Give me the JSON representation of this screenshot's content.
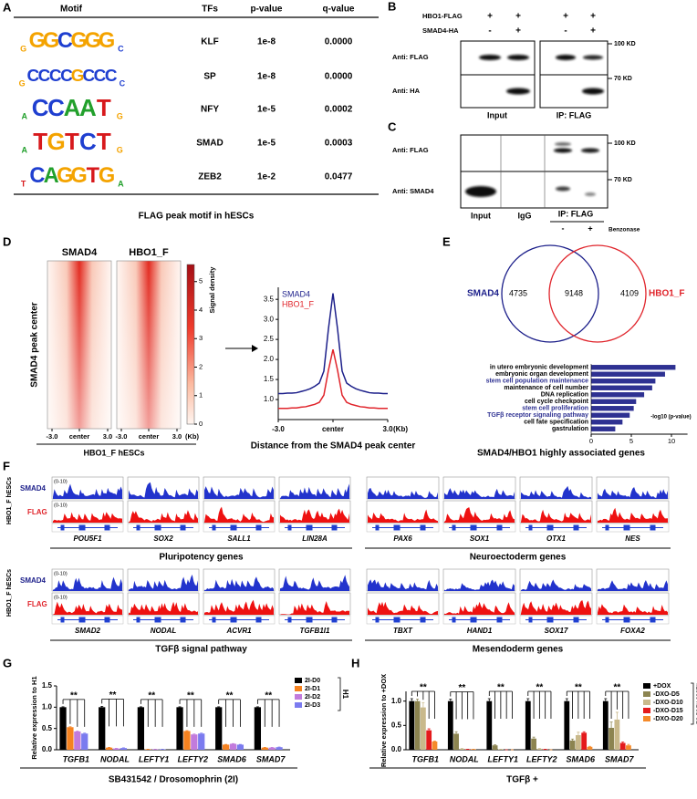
{
  "panel_a": {
    "letter": "A",
    "header": [
      "Motif",
      "TFs",
      "p-value",
      "q-value"
    ],
    "rows": [
      {
        "motif": [
          "G",
          "G",
          "G",
          "C",
          "G",
          "G",
          "G",
          "C"
        ],
        "tf": "KLF",
        "p": "1e-8",
        "q": "0.0000"
      },
      {
        "motif": [
          "G",
          "C",
          "C",
          "C",
          "C",
          "G",
          "C",
          "C",
          "C",
          "C"
        ],
        "tf": "SP",
        "p": "1e-8",
        "q": "0.0000"
      },
      {
        "motif": [
          "A",
          "C",
          "C",
          "A",
          "A",
          "T",
          "G"
        ],
        "tf": "NFY",
        "p": "1e-5",
        "q": "0.0002"
      },
      {
        "motif": [
          "A",
          "T",
          "G",
          "T",
          "C",
          "T",
          "G"
        ],
        "tf": "SMAD",
        "p": "1e-5",
        "q": "0.0003"
      },
      {
        "motif": [
          "T",
          "C",
          "A",
          "G",
          "G",
          "T",
          "G",
          "A"
        ],
        "tf": "ZEB2",
        "p": "1e-2",
        "q": "0.0477"
      }
    ],
    "caption": "FLAG peak motif in hESCs"
  },
  "panel_b": {
    "letter": "B",
    "rows": [
      {
        "label": "HBO1-FLAG",
        "signs": [
          "+",
          "+",
          "+",
          "+"
        ]
      },
      {
        "label": "SMAD4-HA",
        "signs": [
          "-",
          "+",
          "-",
          "+"
        ]
      }
    ],
    "blots": [
      {
        "label": "Anti: FLAG",
        "marker": "100 KD"
      },
      {
        "label": "Anti: HA",
        "marker": "70 KD"
      }
    ],
    "lanes": [
      "Input",
      "IP: FLAG"
    ]
  },
  "panel_c": {
    "letter": "C",
    "blots": [
      {
        "label": "Anti: FLAG",
        "marker": "100 KD"
      },
      {
        "label": "Anti: SMAD4",
        "marker": "70 KD"
      }
    ],
    "lanes": [
      "Input",
      "IgG",
      "IP: FLAG"
    ],
    "signs": [
      "-",
      "+"
    ],
    "treatment": "Benzonase"
  },
  "panel_d": {
    "letter": "D",
    "heatmap_titles": [
      "SMAD4",
      "HBO1_F"
    ],
    "y_label": "SMAD4 peak center",
    "x_ticks": [
      "-3.0",
      "center",
      "3.0"
    ],
    "x_unit": "(Kb)",
    "caption": "HBO1_F hESCs",
    "colorbar": {
      "label": "Signal density",
      "lim": [
        0,
        5.6
      ],
      "ticks": [
        0,
        1,
        2,
        3,
        4,
        5
      ]
    }
  },
  "panel_e": {
    "letter": "E",
    "venn": {
      "left_label": "SMAD4",
      "right_label": "HBO1_F",
      "left_only": 4735,
      "both": 9148,
      "right_only": 4109
    }
  },
  "panel_f": {
    "letter": "F",
    "rows": [
      {
        "side_label": "HBO1_F hESCs",
        "track_labels": [
          "SMAD4",
          "FLAG"
        ],
        "ranges": [
          "(0-10)",
          "(0-10)"
        ],
        "groups": [
          {
            "title": "Pluripotency genes",
            "genes": [
              "POU5F1",
              "SOX2",
              "SALL1",
              "LIN28A"
            ]
          },
          {
            "title": "Neuroectoderm genes",
            "genes": [
              "PAX6",
              "SOX1",
              "OTX1",
              "NES"
            ]
          }
        ]
      },
      {
        "side_label": "HBO1_F hESCs",
        "track_labels": [
          "SMAD4",
          "FLAG"
        ],
        "ranges": [
          "(0-10)",
          "(0-10)"
        ],
        "groups": [
          {
            "title": "TGFβ signal pathway",
            "genes": [
              "SMAD2",
              "NODAL",
              "ACVR1",
              "TGFB1I1"
            ]
          },
          {
            "title": "Mesendoderm genes",
            "genes": [
              "TBXT",
              "HAND1",
              "SOX17",
              "FOXA2"
            ]
          }
        ]
      }
    ]
  },
  "panel_g": {
    "letter": "G"
  },
  "panel_h": {
    "letter": "H"
  },
  "chart_data": [
    {
      "type": "line",
      "x": [
        -3,
        -2.75,
        -2.5,
        -2.25,
        -2,
        -1.75,
        -1.5,
        -1.25,
        -1,
        -0.75,
        -0.5,
        -0.25,
        0,
        0.25,
        0.5,
        0.75,
        1,
        1.25,
        1.5,
        1.75,
        2,
        2.25,
        2.5,
        2.75,
        3
      ],
      "series": [
        {
          "name": "SMAD4",
          "color": "#1c1f8a",
          "values": [
            1.15,
            1.15,
            1.16,
            1.16,
            1.17,
            1.2,
            1.23,
            1.27,
            1.33,
            1.41,
            1.71,
            2.76,
            3.65,
            2.76,
            1.71,
            1.41,
            1.33,
            1.27,
            1.23,
            1.2,
            1.17,
            1.16,
            1.16,
            1.15,
            1.15
          ]
        },
        {
          "name": "HBO1_F",
          "color": "#e0242b",
          "values": [
            0.78,
            0.78,
            0.78,
            0.79,
            0.79,
            0.81,
            0.82,
            0.85,
            0.88,
            0.93,
            1.11,
            1.73,
            2.25,
            1.73,
            1.11,
            0.93,
            0.88,
            0.85,
            0.82,
            0.81,
            0.79,
            0.79,
            0.78,
            0.78,
            0.78
          ]
        }
      ],
      "xlim": [
        -3,
        3
      ],
      "ylim": [
        0.5,
        3.8
      ],
      "xticks": [
        {
          "value": -3,
          "label": "-3.0"
        },
        {
          "value": 0,
          "label": "center"
        },
        {
          "value": 3,
          "label": "3.0"
        }
      ],
      "yticks": [
        {
          "value": 1,
          "label": "1.0"
        },
        1.5,
        {
          "value": 2,
          "label": "2.0"
        },
        2.5,
        {
          "value": 3,
          "label": "3.0"
        },
        3.5
      ],
      "x_unit": "(Kb)",
      "xlabel": "Distance from the SMAD4 peak center"
    },
    {
      "type": "hbar",
      "categories": [
        "in utero embryonic development",
        "embryonic organ development",
        "stem cell population maintenance",
        "maintenance of cell number",
        "DNA replication",
        "cell cycle checkpoint",
        "stem cell proliferation",
        "TGFβ receptor signaling pathway",
        "cell fate specification",
        "gastrulation"
      ],
      "values": [
        10.5,
        9.2,
        8.0,
        7.6,
        6.6,
        5.6,
        5.3,
        4.8,
        3.9,
        3.0
      ],
      "color": "#2e3192",
      "label_colors": [
        "#000000",
        "#000000",
        "#2e3192",
        "#000000",
        "#000000",
        "#000000",
        "#2e3192",
        "#2e3192",
        "#000000",
        "#000000"
      ],
      "xlim": [
        0,
        12
      ],
      "xticks": [
        0,
        5,
        10
      ],
      "xlabel": "-log10 (p-value)",
      "title": "SMAD4/HBO1 highly associated genes"
    },
    {
      "type": "bar",
      "categories": [
        "TGFB1",
        "NODAL",
        "LEFTY1",
        "LEFTY2",
        "SMAD6",
        "SMAD7"
      ],
      "series": [
        {
          "name": "2I-D0",
          "color": "#000000",
          "values": [
            1.0,
            1.0,
            1.0,
            1.0,
            1.0,
            1.0
          ],
          "errors": [
            0.01,
            0.02,
            0.01,
            0.01,
            0.01,
            0.01
          ]
        },
        {
          "name": "2I-D1",
          "color": "#f58220",
          "values": [
            0.53,
            0.05,
            0.01,
            0.44,
            0.12,
            0.05
          ],
          "errors": [
            0.01,
            0.005,
            0.002,
            0.01,
            0.005,
            0.005
          ]
        },
        {
          "name": "2I-D2",
          "color": "#c27bdc",
          "values": [
            0.43,
            0.03,
            0.01,
            0.36,
            0.14,
            0.05
          ],
          "errors": [
            0.01,
            0.005,
            0.002,
            0.01,
            0.005,
            0.005
          ]
        },
        {
          "name": "2I-D3",
          "color": "#7b7bef",
          "values": [
            0.38,
            0.04,
            0.01,
            0.38,
            0.12,
            0.06
          ],
          "errors": [
            0.01,
            0.005,
            0.002,
            0.01,
            0.005,
            0.005
          ]
        }
      ],
      "ylim": [
        0,
        1.5
      ],
      "yticks": [
        {
          "value": 0,
          "label": "0.0"
        },
        0.5,
        {
          "value": 1,
          "label": "1.0"
        },
        1.5
      ],
      "significance": [
        "**",
        "**",
        "**",
        "**",
        "**",
        "**"
      ],
      "ylabel": "Relative expression to H1",
      "xlabel": "SB431542 / Drosomophrin (2I)",
      "legend_title": "H1"
    },
    {
      "type": "bar",
      "categories": [
        "TGFB1",
        "NODAL",
        "LEFTY1",
        "LEFTY2",
        "SMAD6",
        "SMAD7"
      ],
      "series": [
        {
          "name": "+DOX",
          "color": "#000000",
          "values": [
            1.0,
            1.0,
            1.0,
            1.0,
            1.0,
            1.0
          ],
          "errors": [
            0.05,
            0.04,
            0.05,
            0.05,
            0.05,
            0.05
          ]
        },
        {
          "name": "-DXO-D5",
          "color": "#8c8450",
          "values": [
            1.0,
            0.33,
            0.09,
            0.23,
            0.19,
            0.45
          ],
          "errors": [
            0.04,
            0.04,
            0.01,
            0.03,
            0.03,
            0.12
          ]
        },
        {
          "name": "-DXO-D10",
          "color": "#c9b98b",
          "values": [
            0.87,
            0.02,
            0.01,
            0.02,
            0.3,
            0.62
          ],
          "errors": [
            0.1,
            0.005,
            0.002,
            0.005,
            0.06,
            0.15
          ]
        },
        {
          "name": "-DXO-D15",
          "color": "#e41a1c",
          "values": [
            0.4,
            0.01,
            0.0,
            0.01,
            0.35,
            0.14
          ],
          "errors": [
            0.03,
            0.002,
            0.0,
            0.002,
            0.02,
            0.02
          ]
        },
        {
          "name": "-DXO-D20",
          "color": "#f58a2a",
          "values": [
            0.17,
            0.01,
            0.0,
            0.0,
            0.06,
            0.09
          ],
          "errors": [
            0.01,
            0.002,
            0.0,
            0.0,
            0.01,
            0.02
          ]
        }
      ],
      "ylim": [
        0,
        1.2
      ],
      "yticks": [
        {
          "value": 0,
          "label": "0.0"
        },
        0.5,
        {
          "value": 1,
          "label": "1.0"
        }
      ],
      "significance": [
        "**",
        "**",
        "**",
        "**",
        "**",
        "**"
      ],
      "ylabel": "Relative expression to +DOX",
      "xlabel": "TGFβ +",
      "legend_title": "hESCs-HBO1-OE"
    }
  ]
}
